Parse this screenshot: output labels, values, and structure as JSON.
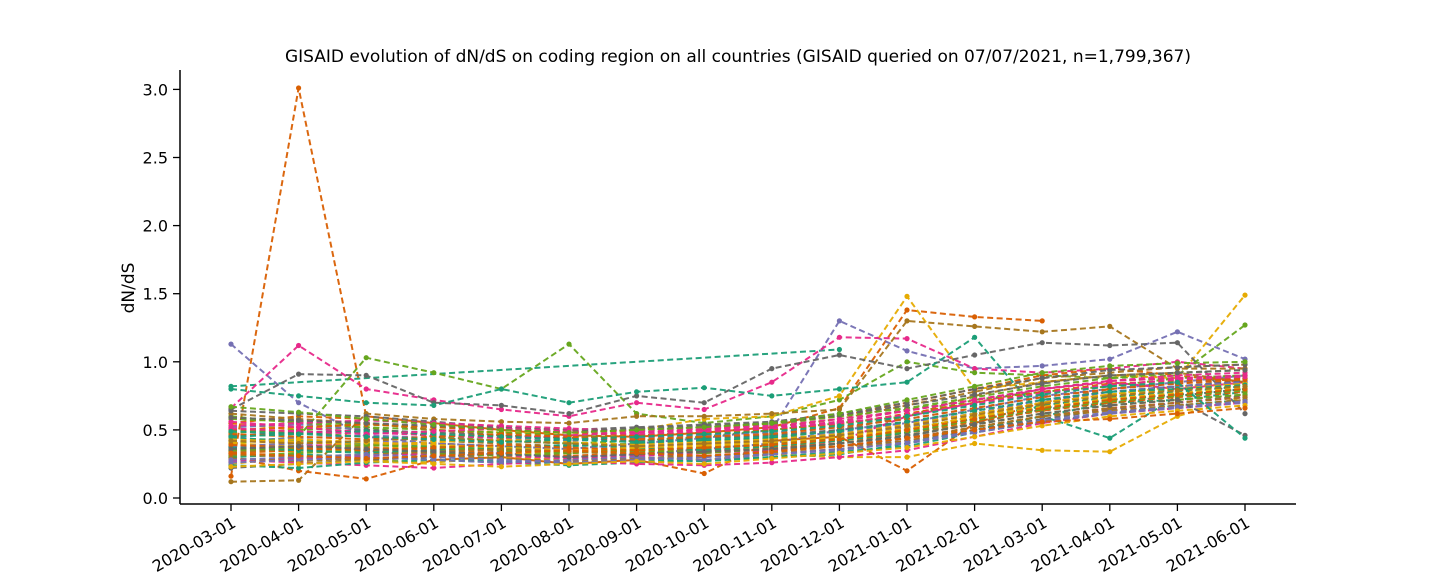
{
  "chart_data": {
    "type": "line",
    "title": "GISAID evolution of dN/dS on coding region on all countries (GISAID queried on 07/07/2021, n=1,799,367)",
    "xlabel": "",
    "ylabel": "dN/dS",
    "ylim": [
      0,
      3.15
    ],
    "yticks": [
      "0.0",
      "0.5",
      "1.0",
      "1.5",
      "2.0",
      "2.5",
      "3.0"
    ],
    "categories": [
      "2020-03-01",
      "2020-04-01",
      "2020-05-01",
      "2020-06-01",
      "2020-07-01",
      "2020-08-01",
      "2020-09-01",
      "2020-10-01",
      "2020-11-01",
      "2020-12-01",
      "2021-01-01",
      "2021-02-01",
      "2021-03-01",
      "2021-04-01",
      "2021-05-01",
      "2021-06-01"
    ],
    "grid": false,
    "legend": "none",
    "line_style": "dashed with dot markers",
    "palette": [
      "#1b9e77",
      "#d95f02",
      "#7570b3",
      "#e7298a",
      "#66a61e",
      "#e6ab02",
      "#a6761d",
      "#666666"
    ],
    "series": [
      {
        "values": [
          0.82,
          null,
          null,
          null,
          null,
          null,
          null,
          null,
          null,
          1.09,
          null,
          null,
          null,
          null,
          null,
          null
        ]
      },
      {
        "values": [
          0.16,
          3.01,
          0.6,
          0.55,
          0.5,
          0.46,
          0.45,
          0.48,
          0.52,
          0.66,
          1.38,
          1.33,
          1.3,
          null,
          null,
          null
        ]
      },
      {
        "values": [
          1.13,
          0.7,
          0.45,
          0.4,
          0.38,
          0.36,
          0.4,
          0.44,
          0.5,
          1.3,
          1.08,
          0.95,
          0.97,
          1.02,
          1.22,
          1.02
        ]
      },
      {
        "values": [
          0.66,
          1.12,
          0.8,
          0.72,
          0.65,
          0.6,
          0.7,
          0.65,
          0.85,
          1.18,
          1.17,
          0.95,
          0.92,
          0.95,
          1.0,
          0.95
        ]
      },
      {
        "values": [
          0.4,
          0.45,
          1.03,
          0.92,
          0.8,
          1.13,
          0.62,
          0.55,
          0.6,
          0.72,
          1.0,
          0.92,
          0.9,
          0.88,
          0.9,
          1.27
        ]
      },
      {
        "values": [
          0.55,
          0.5,
          0.55,
          0.5,
          0.48,
          0.48,
          0.5,
          0.58,
          0.6,
          0.75,
          1.48,
          0.8,
          0.85,
          0.9,
          0.88,
          1.49
        ]
      },
      {
        "values": [
          0.12,
          0.13,
          0.62,
          0.58,
          0.56,
          0.55,
          0.6,
          0.6,
          0.62,
          0.65,
          1.3,
          1.26,
          1.22,
          1.26,
          0.95,
          0.95
        ]
      },
      {
        "values": [
          0.65,
          0.91,
          0.9,
          0.7,
          0.68,
          0.62,
          0.75,
          0.7,
          0.95,
          1.05,
          0.95,
          1.05,
          1.14,
          1.12,
          1.14,
          0.62
        ]
      },
      {
        "values": [
          0.8,
          0.75,
          0.7,
          0.68,
          0.8,
          0.7,
          0.78,
          0.81,
          0.75,
          0.8,
          0.85,
          1.18,
          0.6,
          0.44,
          0.75,
          0.8
        ]
      },
      {
        "values": [
          0.3,
          0.2,
          0.14,
          0.28,
          0.3,
          0.25,
          0.28,
          0.18,
          0.42,
          0.45,
          0.2,
          0.55,
          0.7,
          0.8,
          0.85,
          0.88
        ]
      },
      {
        "values": [
          0.45,
          0.4,
          0.35,
          0.3,
          0.33,
          0.3,
          0.32,
          0.36,
          0.4,
          0.5,
          0.55,
          0.65,
          0.75,
          0.8,
          0.85,
          0.9
        ]
      },
      {
        "values": [
          0.35,
          0.38,
          0.4,
          0.36,
          0.35,
          0.34,
          0.38,
          0.35,
          0.36,
          0.42,
          0.6,
          0.7,
          0.8,
          0.85,
          0.8,
          0.85
        ]
      },
      {
        "values": [
          0.6,
          0.55,
          0.52,
          0.45,
          0.42,
          0.4,
          0.42,
          0.45,
          0.5,
          0.55,
          0.6,
          0.72,
          0.78,
          0.82,
          0.88,
          0.9
        ]
      },
      {
        "values": [
          0.25,
          0.3,
          0.28,
          0.26,
          0.3,
          0.28,
          0.3,
          0.28,
          0.32,
          0.3,
          0.3,
          0.4,
          0.35,
          0.34,
          0.6,
          0.75
        ]
      },
      {
        "values": [
          0.5,
          0.48,
          0.45,
          0.42,
          0.4,
          0.38,
          0.4,
          0.42,
          0.44,
          0.5,
          0.6,
          0.75,
          0.85,
          0.9,
          0.92,
          0.85
        ]
      },
      {
        "values": [
          0.38,
          0.36,
          0.34,
          0.32,
          0.34,
          0.36,
          0.32,
          0.3,
          0.35,
          0.4,
          0.45,
          0.55,
          0.65,
          0.7,
          0.75,
          0.8
        ]
      },
      {
        "values": [
          0.3,
          0.32,
          0.3,
          0.28,
          0.26,
          0.24,
          0.26,
          0.28,
          0.3,
          0.32,
          0.4,
          0.5,
          0.6,
          0.7,
          0.72,
          0.78
        ]
      },
      {
        "values": [
          0.55,
          0.6,
          0.58,
          0.55,
          0.52,
          0.5,
          0.48,
          0.5,
          0.55,
          0.6,
          0.7,
          0.8,
          0.9,
          0.95,
          0.9,
          0.85
        ]
      },
      {
        "values": [
          0.42,
          0.44,
          0.46,
          0.44,
          0.42,
          0.4,
          0.38,
          0.4,
          0.42,
          0.48,
          0.55,
          0.62,
          0.7,
          0.78,
          0.82,
          0.86
        ]
      },
      {
        "values": [
          0.28,
          0.26,
          0.24,
          0.22,
          0.25,
          0.27,
          0.25,
          0.24,
          0.26,
          0.3,
          0.35,
          0.45,
          0.55,
          0.62,
          0.66,
          0.7
        ]
      },
      {
        "values": [
          0.48,
          0.5,
          0.52,
          0.5,
          0.48,
          0.46,
          0.44,
          0.46,
          0.5,
          0.56,
          0.65,
          0.72,
          0.8,
          0.86,
          0.88,
          0.9
        ]
      },
      {
        "values": [
          0.36,
          0.34,
          0.36,
          0.38,
          0.36,
          0.34,
          0.36,
          0.38,
          0.4,
          0.44,
          0.5,
          0.6,
          0.68,
          0.74,
          0.8,
          0.82
        ]
      },
      {
        "values": [
          0.62,
          0.58,
          0.55,
          0.5,
          0.46,
          0.44,
          0.46,
          0.48,
          0.52,
          0.58,
          0.68,
          0.78,
          0.88,
          0.92,
          0.96,
          0.98
        ]
      },
      {
        "values": [
          0.22,
          0.25,
          0.28,
          0.3,
          0.32,
          0.3,
          0.28,
          0.3,
          0.34,
          0.38,
          0.42,
          0.5,
          0.58,
          0.65,
          0.7,
          0.75
        ]
      },
      {
        "values": [
          0.44,
          0.42,
          0.4,
          0.38,
          0.36,
          0.38,
          0.4,
          0.42,
          0.44,
          0.46,
          0.52,
          0.58,
          0.66,
          0.72,
          0.76,
          0.8
        ]
      },
      {
        "values": [
          0.33,
          0.35,
          0.37,
          0.35,
          0.33,
          0.31,
          0.33,
          0.35,
          0.37,
          0.4,
          0.48,
          0.56,
          0.64,
          0.7,
          0.74,
          0.78
        ]
      },
      {
        "values": [
          0.52,
          0.54,
          0.5,
          0.46,
          0.44,
          0.42,
          0.44,
          0.46,
          0.48,
          0.52,
          0.58,
          0.66,
          0.74,
          0.8,
          0.84,
          0.88
        ]
      },
      {
        "values": [
          0.27,
          0.29,
          0.31,
          0.33,
          0.31,
          0.29,
          0.31,
          0.33,
          0.35,
          0.38,
          0.44,
          0.52,
          0.6,
          0.66,
          0.7,
          0.74
        ]
      },
      {
        "values": [
          0.58,
          0.56,
          0.54,
          0.52,
          0.5,
          0.48,
          0.5,
          0.52,
          0.54,
          0.6,
          0.66,
          0.74,
          0.82,
          0.88,
          0.92,
          0.94
        ]
      },
      {
        "values": [
          0.4,
          0.38,
          0.36,
          0.34,
          0.32,
          0.34,
          0.36,
          0.34,
          0.38,
          0.42,
          0.5,
          0.6,
          0.7,
          0.76,
          0.82,
          0.84
        ]
      },
      {
        "values": [
          0.34,
          0.36,
          0.38,
          0.4,
          0.38,
          0.36,
          0.34,
          0.36,
          0.4,
          0.44,
          0.48,
          0.54,
          0.62,
          0.68,
          0.72,
          0.76
        ]
      },
      {
        "values": [
          0.46,
          0.48,
          0.5,
          0.48,
          0.46,
          0.44,
          0.42,
          0.44,
          0.46,
          0.5,
          0.56,
          0.64,
          0.72,
          0.78,
          0.82,
          0.86
        ]
      },
      {
        "values": [
          0.24,
          0.22,
          0.26,
          0.28,
          0.27,
          0.26,
          0.28,
          0.27,
          0.3,
          0.34,
          0.38,
          0.48,
          0.56,
          0.62,
          0.68,
          0.72
        ]
      },
      {
        "values": [
          0.5,
          0.52,
          0.54,
          0.52,
          0.5,
          0.48,
          0.46,
          0.48,
          0.5,
          0.54,
          0.62,
          0.7,
          0.78,
          0.84,
          0.86,
          0.88
        ]
      },
      {
        "values": [
          0.38,
          0.4,
          0.42,
          0.4,
          0.38,
          0.36,
          0.38,
          0.4,
          0.42,
          0.46,
          0.52,
          0.62,
          0.72,
          0.78,
          0.82,
          0.85
        ]
      },
      {
        "values": [
          0.56,
          0.52,
          0.48,
          0.46,
          0.44,
          0.46,
          0.48,
          0.5,
          0.52,
          0.56,
          0.64,
          0.72,
          0.8,
          0.86,
          0.9,
          0.92
        ]
      },
      {
        "values": [
          0.31,
          0.33,
          0.35,
          0.33,
          0.31,
          0.33,
          0.35,
          0.33,
          0.36,
          0.4,
          0.46,
          0.54,
          0.62,
          0.68,
          0.72,
          0.76
        ]
      },
      {
        "values": [
          0.43,
          0.41,
          0.39,
          0.41,
          0.43,
          0.41,
          0.39,
          0.41,
          0.43,
          0.47,
          0.54,
          0.62,
          0.7,
          0.76,
          0.8,
          0.84
        ]
      },
      {
        "values": [
          0.29,
          0.27,
          0.29,
          0.31,
          0.29,
          0.27,
          0.29,
          0.31,
          0.33,
          0.36,
          0.42,
          0.52,
          0.6,
          0.66,
          0.7,
          0.74
        ]
      },
      {
        "values": [
          0.64,
          0.62,
          0.6,
          0.56,
          0.52,
          0.5,
          0.52,
          0.54,
          0.56,
          0.62,
          0.7,
          0.8,
          0.88,
          0.94,
          0.96,
          0.98
        ]
      },
      {
        "values": [
          0.37,
          0.35,
          0.33,
          0.35,
          0.37,
          0.39,
          0.37,
          0.35,
          0.38,
          0.42,
          0.48,
          0.58,
          0.68,
          0.74,
          0.78,
          0.82
        ]
      },
      {
        "values": [
          0.47,
          0.45,
          0.43,
          0.45,
          0.47,
          0.45,
          0.43,
          0.45,
          0.47,
          0.52,
          0.58,
          0.66,
          0.74,
          0.8,
          0.84,
          0.87
        ]
      },
      {
        "values": [
          0.26,
          0.28,
          0.3,
          0.28,
          0.26,
          0.28,
          0.3,
          0.28,
          0.32,
          0.36,
          0.4,
          0.48,
          0.56,
          0.62,
          0.66,
          0.7
        ]
      },
      {
        "values": [
          0.53,
          0.55,
          0.57,
          0.55,
          0.53,
          0.51,
          0.49,
          0.51,
          0.53,
          0.58,
          0.64,
          0.72,
          0.8,
          0.86,
          0.88,
          0.9
        ]
      },
      {
        "values": [
          0.35,
          0.37,
          0.39,
          0.37,
          0.35,
          0.33,
          0.35,
          0.37,
          0.39,
          0.43,
          0.49,
          0.57,
          0.65,
          0.71,
          0.75,
          0.79
        ]
      },
      {
        "values": [
          0.41,
          0.43,
          0.41,
          0.39,
          0.37,
          0.35,
          0.37,
          0.39,
          0.41,
          0.45,
          0.51,
          0.59,
          0.67,
          0.73,
          0.77,
          0.81
        ]
      },
      {
        "values": [
          0.32,
          0.3,
          0.32,
          0.34,
          0.36,
          0.34,
          0.32,
          0.34,
          0.36,
          0.38,
          0.44,
          0.52,
          0.6,
          0.64,
          0.68,
          0.72
        ]
      },
      {
        "values": [
          0.59,
          0.57,
          0.55,
          0.53,
          0.51,
          0.49,
          0.51,
          0.53,
          0.55,
          0.61,
          0.68,
          0.76,
          0.84,
          0.9,
          0.92,
          0.94
        ]
      },
      {
        "values": [
          0.45,
          0.47,
          0.49,
          0.47,
          0.45,
          0.43,
          0.41,
          0.43,
          0.45,
          0.49,
          0.56,
          0.64,
          0.72,
          0.78,
          0.8,
          0.83
        ]
      },
      {
        "values": [
          0.39,
          0.37,
          0.35,
          0.37,
          0.39,
          0.37,
          0.35,
          0.37,
          0.39,
          0.43,
          0.5,
          0.58,
          0.66,
          0.72,
          0.76,
          0.8
        ]
      },
      {
        "values": [
          0.28,
          0.3,
          0.32,
          0.3,
          0.28,
          0.26,
          0.28,
          0.3,
          0.32,
          0.35,
          0.41,
          0.49,
          0.57,
          0.63,
          0.67,
          0.71
        ]
      },
      {
        "values": [
          0.51,
          0.49,
          0.47,
          0.49,
          0.51,
          0.49,
          0.47,
          0.49,
          0.51,
          0.55,
          0.61,
          0.69,
          0.77,
          0.83,
          0.87,
          0.89
        ]
      },
      {
        "values": [
          0.67,
          0.63,
          0.58,
          0.54,
          0.5,
          0.48,
          0.5,
          0.52,
          0.55,
          0.62,
          0.72,
          0.82,
          0.92,
          0.97,
          0.99,
          1.0
        ]
      },
      {
        "values": [
          0.23,
          0.25,
          0.27,
          0.25,
          0.23,
          0.25,
          0.27,
          0.25,
          0.29,
          0.33,
          0.37,
          0.45,
          0.53,
          0.6,
          0.64,
          0.68
        ]
      },
      {
        "values": [
          0.42,
          0.4,
          0.42,
          0.44,
          0.42,
          0.4,
          0.38,
          0.4,
          0.42,
          0.46,
          0.53,
          0.61,
          0.69,
          0.75,
          0.79,
          0.82
        ]
      },
      {
        "values": [
          0.36,
          0.38,
          0.36,
          0.34,
          0.32,
          0.3,
          0.32,
          0.34,
          0.36,
          0.4,
          0.46,
          0.54,
          0.62,
          0.68,
          0.72,
          0.46
        ]
      },
      {
        "values": [
          0.49,
          0.47,
          0.45,
          0.43,
          0.41,
          0.43,
          0.45,
          0.47,
          0.49,
          0.53,
          0.6,
          0.68,
          0.76,
          0.82,
          0.85,
          0.44
        ]
      },
      {
        "values": [
          0.33,
          0.31,
          0.29,
          0.31,
          0.33,
          0.35,
          0.33,
          0.31,
          0.34,
          0.38,
          0.44,
          0.5,
          0.56,
          0.58,
          0.62,
          0.66
        ]
      }
    ]
  }
}
